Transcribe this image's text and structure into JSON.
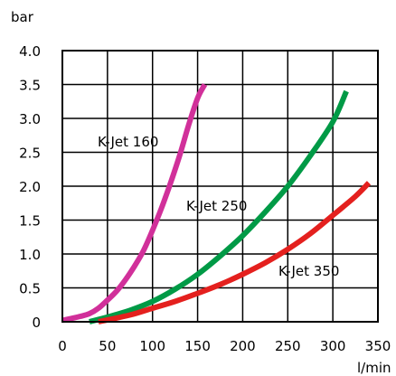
{
  "chart_data": {
    "type": "line",
    "title": "",
    "xlabel": "l/min",
    "ylabel": "bar",
    "xlim": [
      0,
      350
    ],
    "ylim": [
      0,
      4.0
    ],
    "x_ticks": [
      0,
      50,
      100,
      150,
      200,
      250,
      300,
      350
    ],
    "x_tick_labels": [
      "0",
      "50",
      "100",
      "150",
      "200",
      "250",
      "300",
      "350"
    ],
    "y_ticks": [
      0,
      0.5,
      1.0,
      1.5,
      2.0,
      2.5,
      3.0,
      3.5,
      4.0
    ],
    "y_tick_labels": [
      "0",
      "0.5",
      "1.0",
      "1.5",
      "2.0",
      "2.5",
      "3.0",
      "3.5",
      "4.0"
    ],
    "grid": true,
    "series": [
      {
        "name": "K-Jet 160",
        "color": "#d1309a",
        "points": [
          [
            0,
            0.02
          ],
          [
            10,
            0.05
          ],
          [
            20,
            0.08
          ],
          [
            30,
            0.12
          ],
          [
            40,
            0.2
          ],
          [
            50,
            0.32
          ],
          [
            60,
            0.45
          ],
          [
            70,
            0.62
          ],
          [
            80,
            0.82
          ],
          [
            90,
            1.05
          ],
          [
            100,
            1.35
          ],
          [
            110,
            1.68
          ],
          [
            120,
            2.05
          ],
          [
            130,
            2.45
          ],
          [
            140,
            2.9
          ],
          [
            150,
            3.3
          ],
          [
            158,
            3.5
          ]
        ]
      },
      {
        "name": "K-Jet 250",
        "color": "#009a46",
        "points": [
          [
            30,
            0.0
          ],
          [
            50,
            0.07
          ],
          [
            75,
            0.17
          ],
          [
            100,
            0.3
          ],
          [
            125,
            0.48
          ],
          [
            150,
            0.7
          ],
          [
            175,
            0.97
          ],
          [
            200,
            1.27
          ],
          [
            225,
            1.62
          ],
          [
            250,
            2.0
          ],
          [
            275,
            2.45
          ],
          [
            300,
            2.95
          ],
          [
            315,
            3.4
          ]
        ]
      },
      {
        "name": "K-Jet 350",
        "color": "#e4201e",
        "points": [
          [
            40,
            0.0
          ],
          [
            75,
            0.1
          ],
          [
            100,
            0.2
          ],
          [
            125,
            0.3
          ],
          [
            150,
            0.42
          ],
          [
            175,
            0.55
          ],
          [
            200,
            0.7
          ],
          [
            225,
            0.87
          ],
          [
            250,
            1.07
          ],
          [
            275,
            1.3
          ],
          [
            300,
            1.57
          ],
          [
            325,
            1.85
          ],
          [
            340,
            2.05
          ]
        ]
      }
    ]
  }
}
